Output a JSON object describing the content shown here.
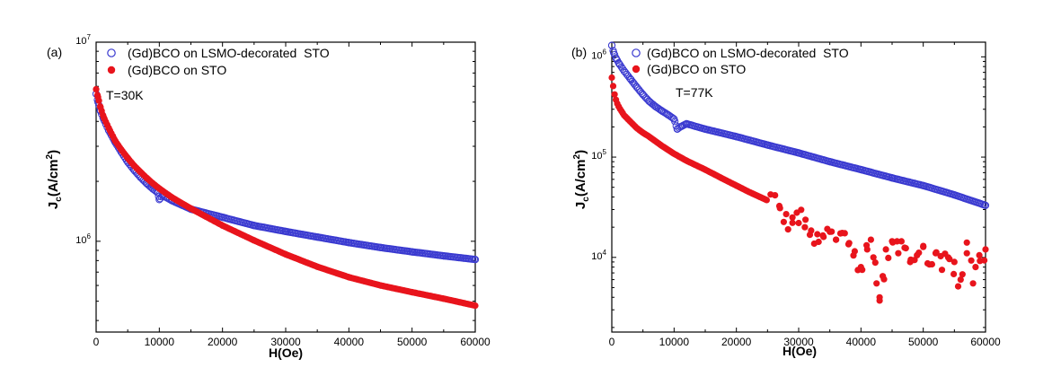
{
  "chart_data": [
    {
      "type": "scatter",
      "panel_label": "(a)",
      "annotation": "T=30K",
      "xlabel": "H(Oe)",
      "ylabel": "Jc(A/cm2)",
      "ylabel_main": "J",
      "ylabel_sub": "c",
      "ylabel_unit": "(A/cm",
      "ylabel_sup": "2",
      "ylabel_close": ")",
      "xscale": "linear",
      "yscale": "log",
      "xlim": [
        0,
        60000
      ],
      "ylim": [
        350000,
        10000000
      ],
      "xticks": [
        0,
        10000,
        20000,
        30000,
        40000,
        50000,
        60000
      ],
      "xtick_labels": [
        "0",
        "10000",
        "20000",
        "30000",
        "40000",
        "50000",
        "60000"
      ],
      "yticks": [
        {
          "value": 1000000,
          "base": "10",
          "exp": "6"
        },
        {
          "value": 10000000,
          "base": "10",
          "exp": "7"
        }
      ],
      "legend_position": "top-left",
      "series": [
        {
          "name": "(Gd)BCO on LSMO-decorated  STO",
          "marker": "open-circle",
          "color": "#3a3ad0",
          "x": [
            0,
            300,
            700,
            1200,
            2000,
            3000,
            4000,
            5000,
            6000,
            7000,
            8000,
            9000,
            9800,
            10000,
            10500,
            12000,
            15000,
            20000,
            25000,
            30000,
            35000,
            40000,
            45000,
            50000,
            55000,
            60000
          ],
          "y": [
            5500000,
            5000000,
            4500000,
            4100000,
            3600000,
            3150000,
            2800000,
            2500000,
            2280000,
            2100000,
            1950000,
            1830000,
            1750000,
            1620000,
            1700000,
            1600000,
            1450000,
            1320000,
            1200000,
            1120000,
            1050000,
            985000,
            930000,
            885000,
            845000,
            810000
          ]
        },
        {
          "name": "(Gd)BCO on STO",
          "marker": "filled-circle",
          "color": "#e8141c",
          "x": [
            0,
            300,
            700,
            1200,
            2000,
            3000,
            4000,
            5000,
            6000,
            7000,
            8000,
            9000,
            10000,
            12000,
            15000,
            20000,
            25000,
            30000,
            35000,
            40000,
            45000,
            50000,
            55000,
            60000
          ],
          "y": [
            5800000,
            5300000,
            4700000,
            4200000,
            3700000,
            3200000,
            2880000,
            2620000,
            2400000,
            2230000,
            2080000,
            1950000,
            1840000,
            1660000,
            1460000,
            1200000,
            1010000,
            860000,
            745000,
            660000,
            600000,
            555000,
            515000,
            475000
          ]
        }
      ]
    },
    {
      "type": "scatter",
      "panel_label": "(b)",
      "annotation": "T=77K",
      "xlabel": "H(Oe)",
      "ylabel": "Jc(A/cm2)",
      "ylabel_main": "J",
      "ylabel_sub": "c",
      "ylabel_unit": "(A/cm",
      "ylabel_sup": "2",
      "ylabel_close": ")",
      "xscale": "linear",
      "yscale": "log",
      "xlim": [
        0,
        60000
      ],
      "ylim": [
        1800,
        1400000
      ],
      "xticks": [
        0,
        10000,
        20000,
        30000,
        40000,
        50000,
        60000
      ],
      "xtick_labels": [
        "0",
        "10000",
        "20000",
        "30000",
        "40000",
        "50000",
        "60000"
      ],
      "yticks": [
        {
          "value": 10000,
          "base": "10",
          "exp": "4"
        },
        {
          "value": 100000,
          "base": "10",
          "exp": "5"
        },
        {
          "value": 1000000,
          "base": "10",
          "exp": "6"
        }
      ],
      "legend_position": "top-left",
      "series": [
        {
          "name": "(Gd)BCO on LSMO-decorated  STO",
          "marker": "open-circle",
          "color": "#3a3ad0",
          "x": [
            0,
            300,
            700,
            1200,
            2000,
            3000,
            4000,
            5000,
            6000,
            7000,
            8000,
            9000,
            10000,
            10500,
            11000,
            12000,
            15000,
            20000,
            25000,
            30000,
            35000,
            40000,
            45000,
            50000,
            55000,
            60000
          ],
          "y": [
            1300000,
            1100000,
            960000,
            850000,
            720000,
            600000,
            500000,
            420000,
            360000,
            320000,
            290000,
            265000,
            240000,
            190000,
            200000,
            215000,
            190000,
            160000,
            132000,
            110000,
            90000,
            75000,
            62000,
            52000,
            42000,
            33000
          ]
        },
        {
          "name": "(Gd)BCO on STO",
          "marker": "filled-circle",
          "color": "#e8141c",
          "x": [
            0,
            200,
            500,
            800,
            1200,
            2000,
            3000,
            4000,
            5000,
            6000,
            8000,
            10000,
            12000,
            15000,
            18000,
            20000,
            22000,
            25000,
            27000,
            28000,
            29000,
            30000,
            31000,
            32000,
            33000,
            34000,
            35000,
            36000,
            37000,
            38000,
            39000,
            40000,
            41000,
            42000,
            42500,
            43000,
            43500,
            44000,
            45000,
            46000,
            47000,
            48000,
            49000,
            50000,
            51000,
            52000,
            53000,
            54000,
            55000,
            56000,
            57000,
            58000,
            59000,
            60000
          ],
          "y": [
            620000,
            520000,
            400000,
            350000,
            310000,
            260000,
            225000,
            195000,
            175000,
            160000,
            130000,
            108000,
            92000,
            75000,
            60000,
            52000,
            45000,
            37000,
            31000,
            27000,
            25000,
            22000,
            20000,
            18500,
            17000,
            16000,
            18000,
            15000,
            17500,
            13500,
            11500,
            8000,
            12000,
            10000,
            5500,
            4000,
            6500,
            12000,
            14500,
            11000,
            12500,
            9500,
            10500,
            13000,
            8500,
            11000,
            7500,
            10000,
            9000,
            6000,
            11000,
            5500,
            10500,
            12000
          ]
        }
      ]
    }
  ]
}
